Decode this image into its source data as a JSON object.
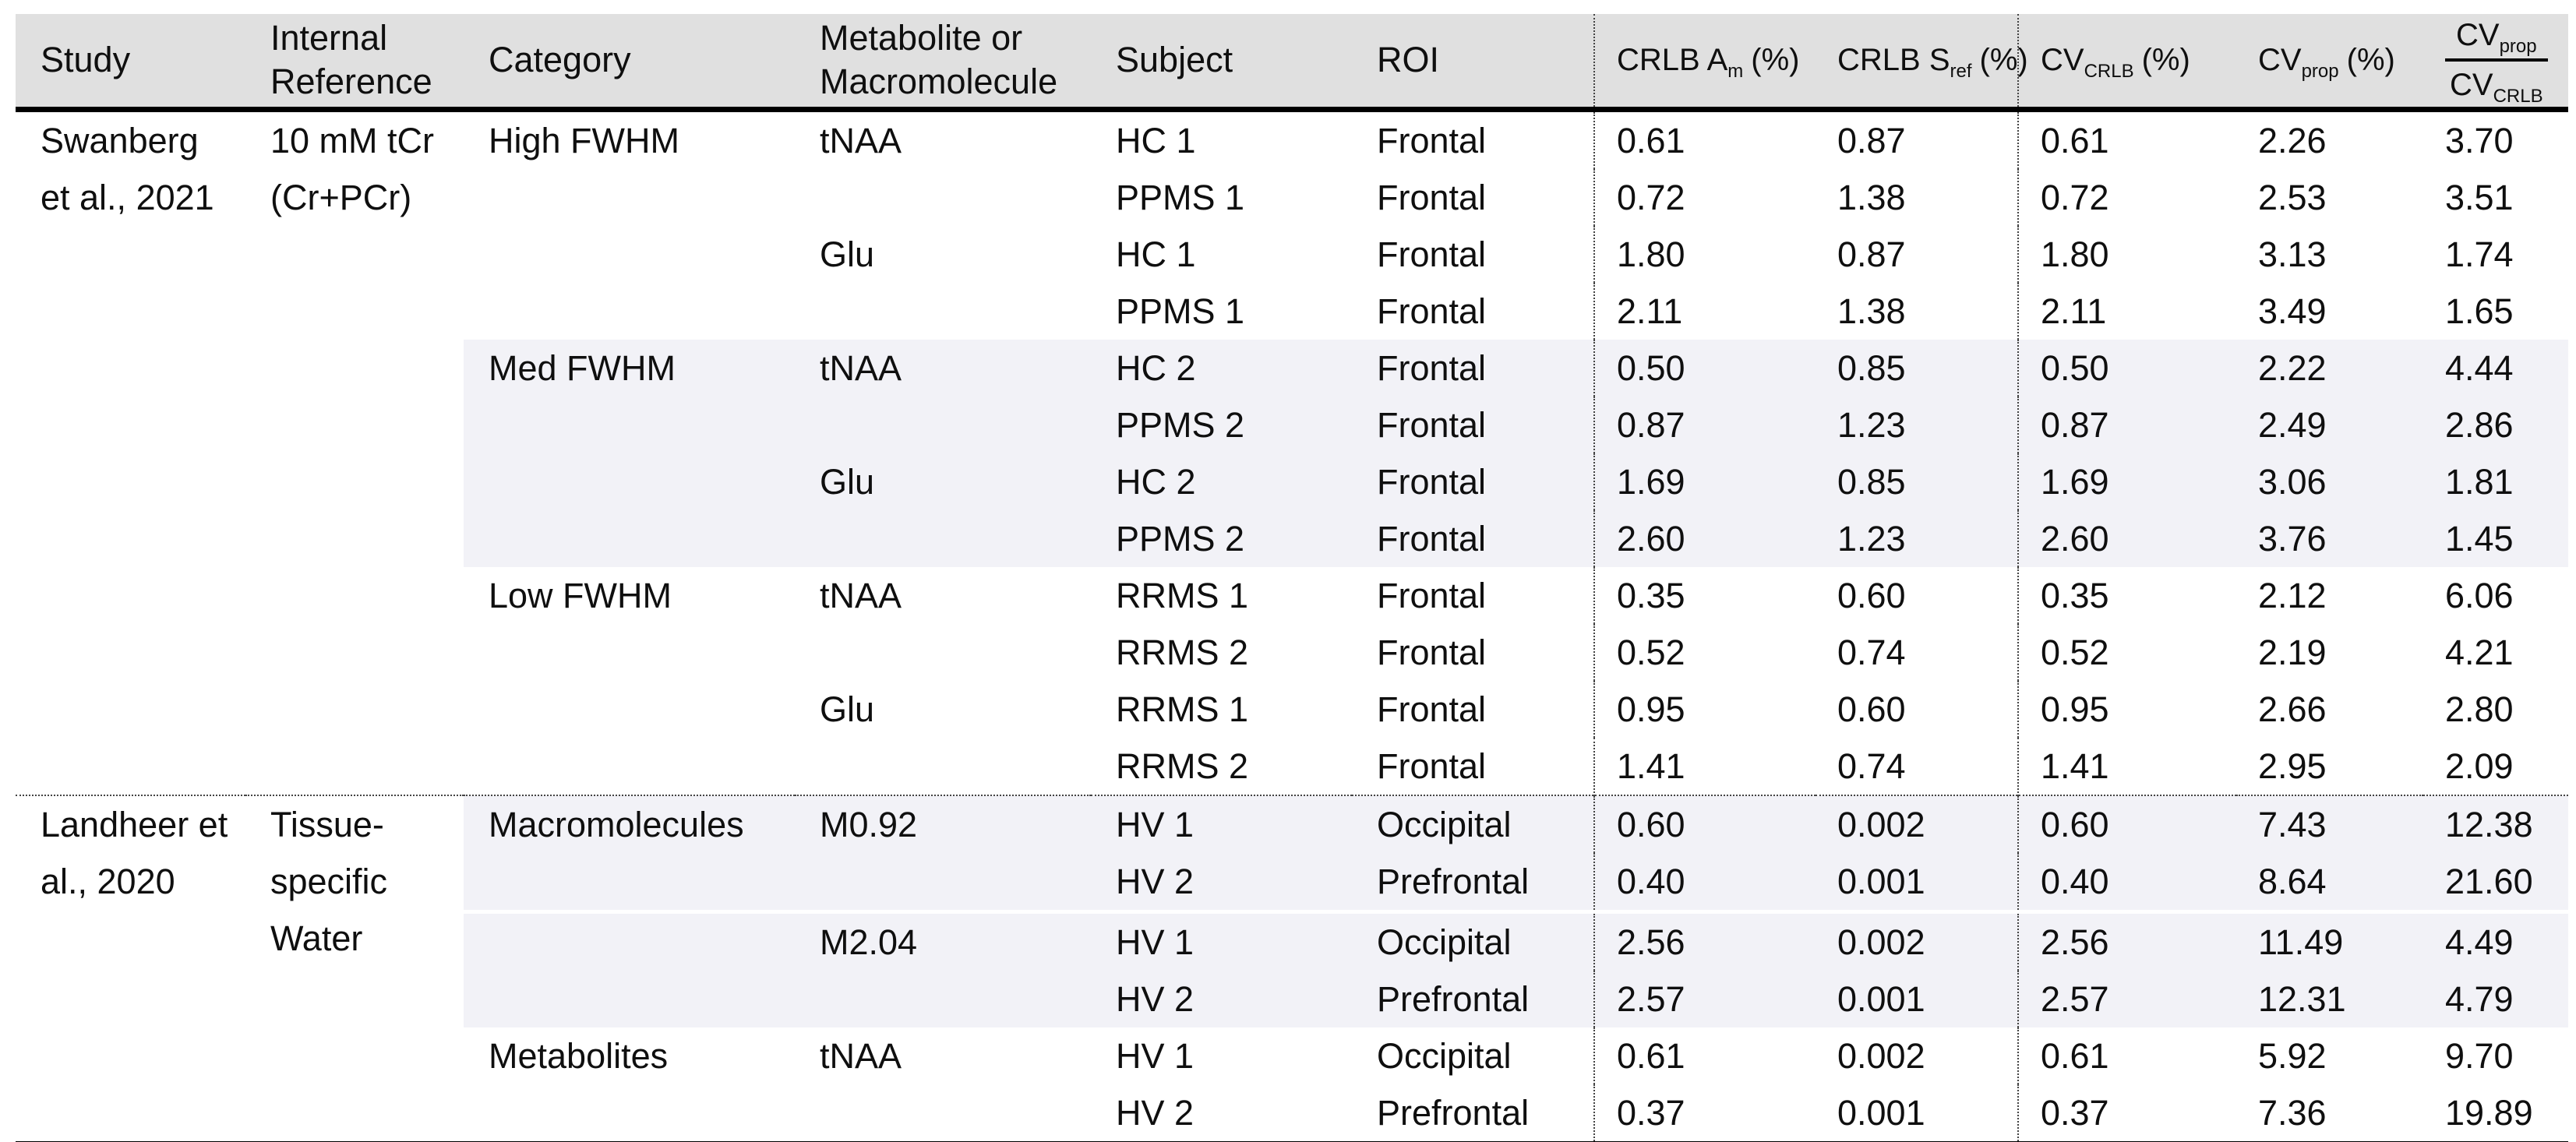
{
  "table": {
    "header": {
      "study": "Study",
      "internal_reference": "Internal Reference",
      "category": "Category",
      "metabolite": "Metabolite or Macromolecule",
      "subject": "Subject",
      "roi": "ROI",
      "crlb_am": {
        "base": "CRLB A",
        "sub": "m",
        "unit": "(%)"
      },
      "crlb_sref": {
        "base": "CRLB S",
        "sub": "ref",
        "unit": "(%)"
      },
      "cv_crlb": {
        "base": "CV",
        "sub": "CRLB",
        "unit": "(%)"
      },
      "cv_prop": {
        "base": "CV",
        "sub": "prop",
        "unit": "(%)"
      },
      "ratio": {
        "num_base": "CV",
        "num_sub": "prop",
        "den_base": "CV",
        "den_sub": "CRLB"
      }
    },
    "studies": [
      {
        "study": "Swanberg et al., 2021",
        "internal_reference": "10 mM tCr (Cr+PCr)"
      },
      {
        "study": "Landheer et al., 2020",
        "internal_reference": "Tissue-specific Water"
      }
    ],
    "rows": [
      {
        "category": "High FWHM",
        "metabolite": "tNAA",
        "subject": "HC 1",
        "roi": "Frontal",
        "crlb_am": "0.61",
        "crlb_sref": "0.87",
        "cv_crlb": "0.61",
        "cv_prop": "2.26",
        "ratio": "3.70"
      },
      {
        "subject": "PPMS 1",
        "roi": "Frontal",
        "crlb_am": "0.72",
        "crlb_sref": "1.38",
        "cv_crlb": "0.72",
        "cv_prop": "2.53",
        "ratio": "3.51"
      },
      {
        "metabolite": "Glu",
        "subject": "HC 1",
        "roi": "Frontal",
        "crlb_am": "1.80",
        "crlb_sref": "0.87",
        "cv_crlb": "1.80",
        "cv_prop": "3.13",
        "ratio": "1.74"
      },
      {
        "subject": "PPMS 1",
        "roi": "Frontal",
        "crlb_am": "2.11",
        "crlb_sref": "1.38",
        "cv_crlb": "2.11",
        "cv_prop": "3.49",
        "ratio": "1.65"
      },
      {
        "category": "Med FWHM",
        "metabolite": "tNAA",
        "subject": "HC 2",
        "roi": "Frontal",
        "crlb_am": "0.50",
        "crlb_sref": "0.85",
        "cv_crlb": "0.50",
        "cv_prop": "2.22",
        "ratio": "4.44"
      },
      {
        "subject": "PPMS 2",
        "roi": "Frontal",
        "crlb_am": "0.87",
        "crlb_sref": "1.23",
        "cv_crlb": "0.87",
        "cv_prop": "2.49",
        "ratio": "2.86"
      },
      {
        "metabolite": "Glu",
        "subject": "HC 2",
        "roi": "Frontal",
        "crlb_am": "1.69",
        "crlb_sref": "0.85",
        "cv_crlb": "1.69",
        "cv_prop": "3.06",
        "ratio": "1.81"
      },
      {
        "subject": "PPMS 2",
        "roi": "Frontal",
        "crlb_am": "2.60",
        "crlb_sref": "1.23",
        "cv_crlb": "2.60",
        "cv_prop": "3.76",
        "ratio": "1.45"
      },
      {
        "category": "Low FWHM",
        "metabolite": "tNAA",
        "subject": "RRMS 1",
        "roi": "Frontal",
        "crlb_am": "0.35",
        "crlb_sref": "0.60",
        "cv_crlb": "0.35",
        "cv_prop": "2.12",
        "ratio": "6.06"
      },
      {
        "subject": "RRMS 2",
        "roi": "Frontal",
        "crlb_am": "0.52",
        "crlb_sref": "0.74",
        "cv_crlb": "0.52",
        "cv_prop": "2.19",
        "ratio": "4.21"
      },
      {
        "metabolite": "Glu",
        "subject": "RRMS 1",
        "roi": "Frontal",
        "crlb_am": "0.95",
        "crlb_sref": "0.60",
        "cv_crlb": "0.95",
        "cv_prop": "2.66",
        "ratio": "2.80"
      },
      {
        "subject": "RRMS 2",
        "roi": "Frontal",
        "crlb_am": "1.41",
        "crlb_sref": "0.74",
        "cv_crlb": "1.41",
        "cv_prop": "2.95",
        "ratio": "2.09"
      },
      {
        "category": "Macromolecules",
        "metabolite": "M0.92",
        "subject": "HV 1",
        "roi": "Occipital",
        "crlb_am": "0.60",
        "crlb_sref": "0.002",
        "cv_crlb": "0.60",
        "cv_prop": "7.43",
        "ratio": "12.38"
      },
      {
        "subject": "HV 2",
        "roi": "Prefrontal",
        "crlb_am": "0.40",
        "crlb_sref": "0.001",
        "cv_crlb": "0.40",
        "cv_prop": "8.64",
        "ratio": "21.60"
      },
      {
        "metabolite": "M2.04",
        "subject": "HV 1",
        "roi": "Occipital",
        "crlb_am": "2.56",
        "crlb_sref": "0.002",
        "cv_crlb": "2.56",
        "cv_prop": "11.49",
        "ratio": "4.49"
      },
      {
        "subject": "HV 2",
        "roi": "Prefrontal",
        "crlb_am": "2.57",
        "crlb_sref": "0.001",
        "cv_crlb": "2.57",
        "cv_prop": "12.31",
        "ratio": "4.79"
      },
      {
        "category": "Metabolites",
        "metabolite": "tNAA",
        "subject": "HV 1",
        "roi": "Occipital",
        "crlb_am": "0.61",
        "crlb_sref": "0.002",
        "cv_crlb": "0.61",
        "cv_prop": "5.92",
        "ratio": "9.70"
      },
      {
        "subject": "HV 2",
        "roi": "Prefrontal",
        "crlb_am": "0.37",
        "crlb_sref": "0.001",
        "cv_crlb": "0.37",
        "cv_prop": "7.36",
        "ratio": "19.89"
      }
    ],
    "colors": {
      "header_bg": "#e0e0e0",
      "band_bg": "#f2f2f7",
      "rule": "#000000",
      "dotted": "#444444"
    }
  }
}
